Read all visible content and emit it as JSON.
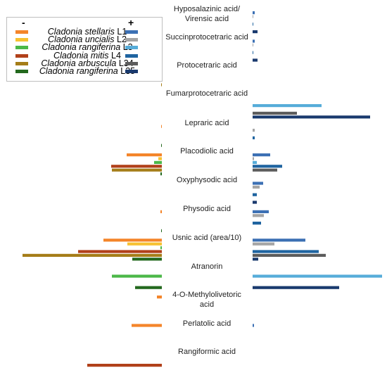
{
  "legend": {
    "minus_sign": "-",
    "plus_sign": "+",
    "entries": [
      {
        "species": "Cladonia stellaris",
        "strain": "L1",
        "neg_color": "#f4852a",
        "pos_color": "#3c70b4"
      },
      {
        "species": "Cladonia uncialis",
        "strain": "L2",
        "neg_color": "#f7c131",
        "pos_color": "#a5a5a5"
      },
      {
        "species": "Cladonia rangiferina",
        "strain": "L3",
        "neg_color": "#4bb848",
        "pos_color": "#56acd9"
      },
      {
        "species": "Cladonia mitis",
        "strain": "L4",
        "neg_color": "#b1401a",
        "pos_color": "#1f64a0"
      },
      {
        "species": "Cladonia arbuscula",
        "strain": "L34",
        "neg_color": "#a57d18",
        "pos_color": "#5c5c5c"
      },
      {
        "species": "Cladonia rangiferina",
        "strain": "L35",
        "neg_color": "#23691e",
        "pos_color": "#1a3a6e"
      }
    ]
  },
  "chart_data": {
    "type": "bar",
    "orientation": "horizontal-diverging",
    "categories": [
      "Hyposalazinic acid/ Virensic acid",
      "Succinprotocetraric acid",
      "Protocetraric acid",
      "Fumarprotocetraric acid",
      "Lepraric acid",
      "Placodiolic acid",
      "Oxyphysodic acid",
      "Physodic acid",
      "Usnic acid (area/10)",
      "Atranorin",
      "4-O-Methylolivetoric acid",
      "Perlatolic acid",
      "Rangiformic acid"
    ],
    "series_labels": [
      "L1",
      "L2",
      "L3",
      "L4",
      "L34",
      "L35"
    ],
    "negative": [
      [
        0,
        0,
        0,
        0,
        0,
        0
      ],
      [
        0,
        0,
        0,
        0,
        0,
        0
      ],
      [
        0,
        0,
        0,
        0,
        1,
        0
      ],
      [
        0,
        0,
        0,
        0,
        0,
        0
      ],
      [
        1,
        0,
        0,
        0,
        0,
        1
      ],
      [
        50,
        5,
        11,
        72,
        71,
        2
      ],
      [
        0,
        0,
        0,
        0,
        0,
        0
      ],
      [
        2,
        0,
        0,
        0,
        0,
        1
      ],
      [
        83,
        49,
        2,
        119,
        198,
        42
      ],
      [
        0,
        0,
        71,
        0,
        0,
        38
      ],
      [
        7,
        0,
        0,
        0,
        0,
        0
      ],
      [
        43,
        0,
        0,
        0,
        0,
        0
      ],
      [
        0,
        0,
        0,
        106,
        0,
        0
      ]
    ],
    "positive": [
      [
        3,
        1,
        0,
        1,
        0,
        7
      ],
      [
        3,
        1,
        0,
        1,
        0,
        7
      ],
      [
        0,
        0,
        0,
        0,
        0,
        0
      ],
      [
        0,
        0,
        98,
        0,
        63,
        167
      ],
      [
        0,
        3,
        0,
        3,
        0,
        0
      ],
      [
        25,
        2,
        6,
        42,
        35,
        0
      ],
      [
        15,
        10,
        0,
        6,
        0,
        6
      ],
      [
        23,
        16,
        0,
        12,
        0,
        0
      ],
      [
        75,
        31,
        0,
        94,
        104,
        8
      ],
      [
        0,
        0,
        184,
        0,
        0,
        123
      ],
      [
        0,
        0,
        0,
        0,
        0,
        0
      ],
      [
        2,
        0,
        0,
        0,
        0,
        0
      ],
      [
        0,
        0,
        0,
        0,
        0,
        0
      ]
    ],
    "xlabel": "",
    "ylabel": "",
    "grid": false,
    "legend_position": "top-left"
  }
}
